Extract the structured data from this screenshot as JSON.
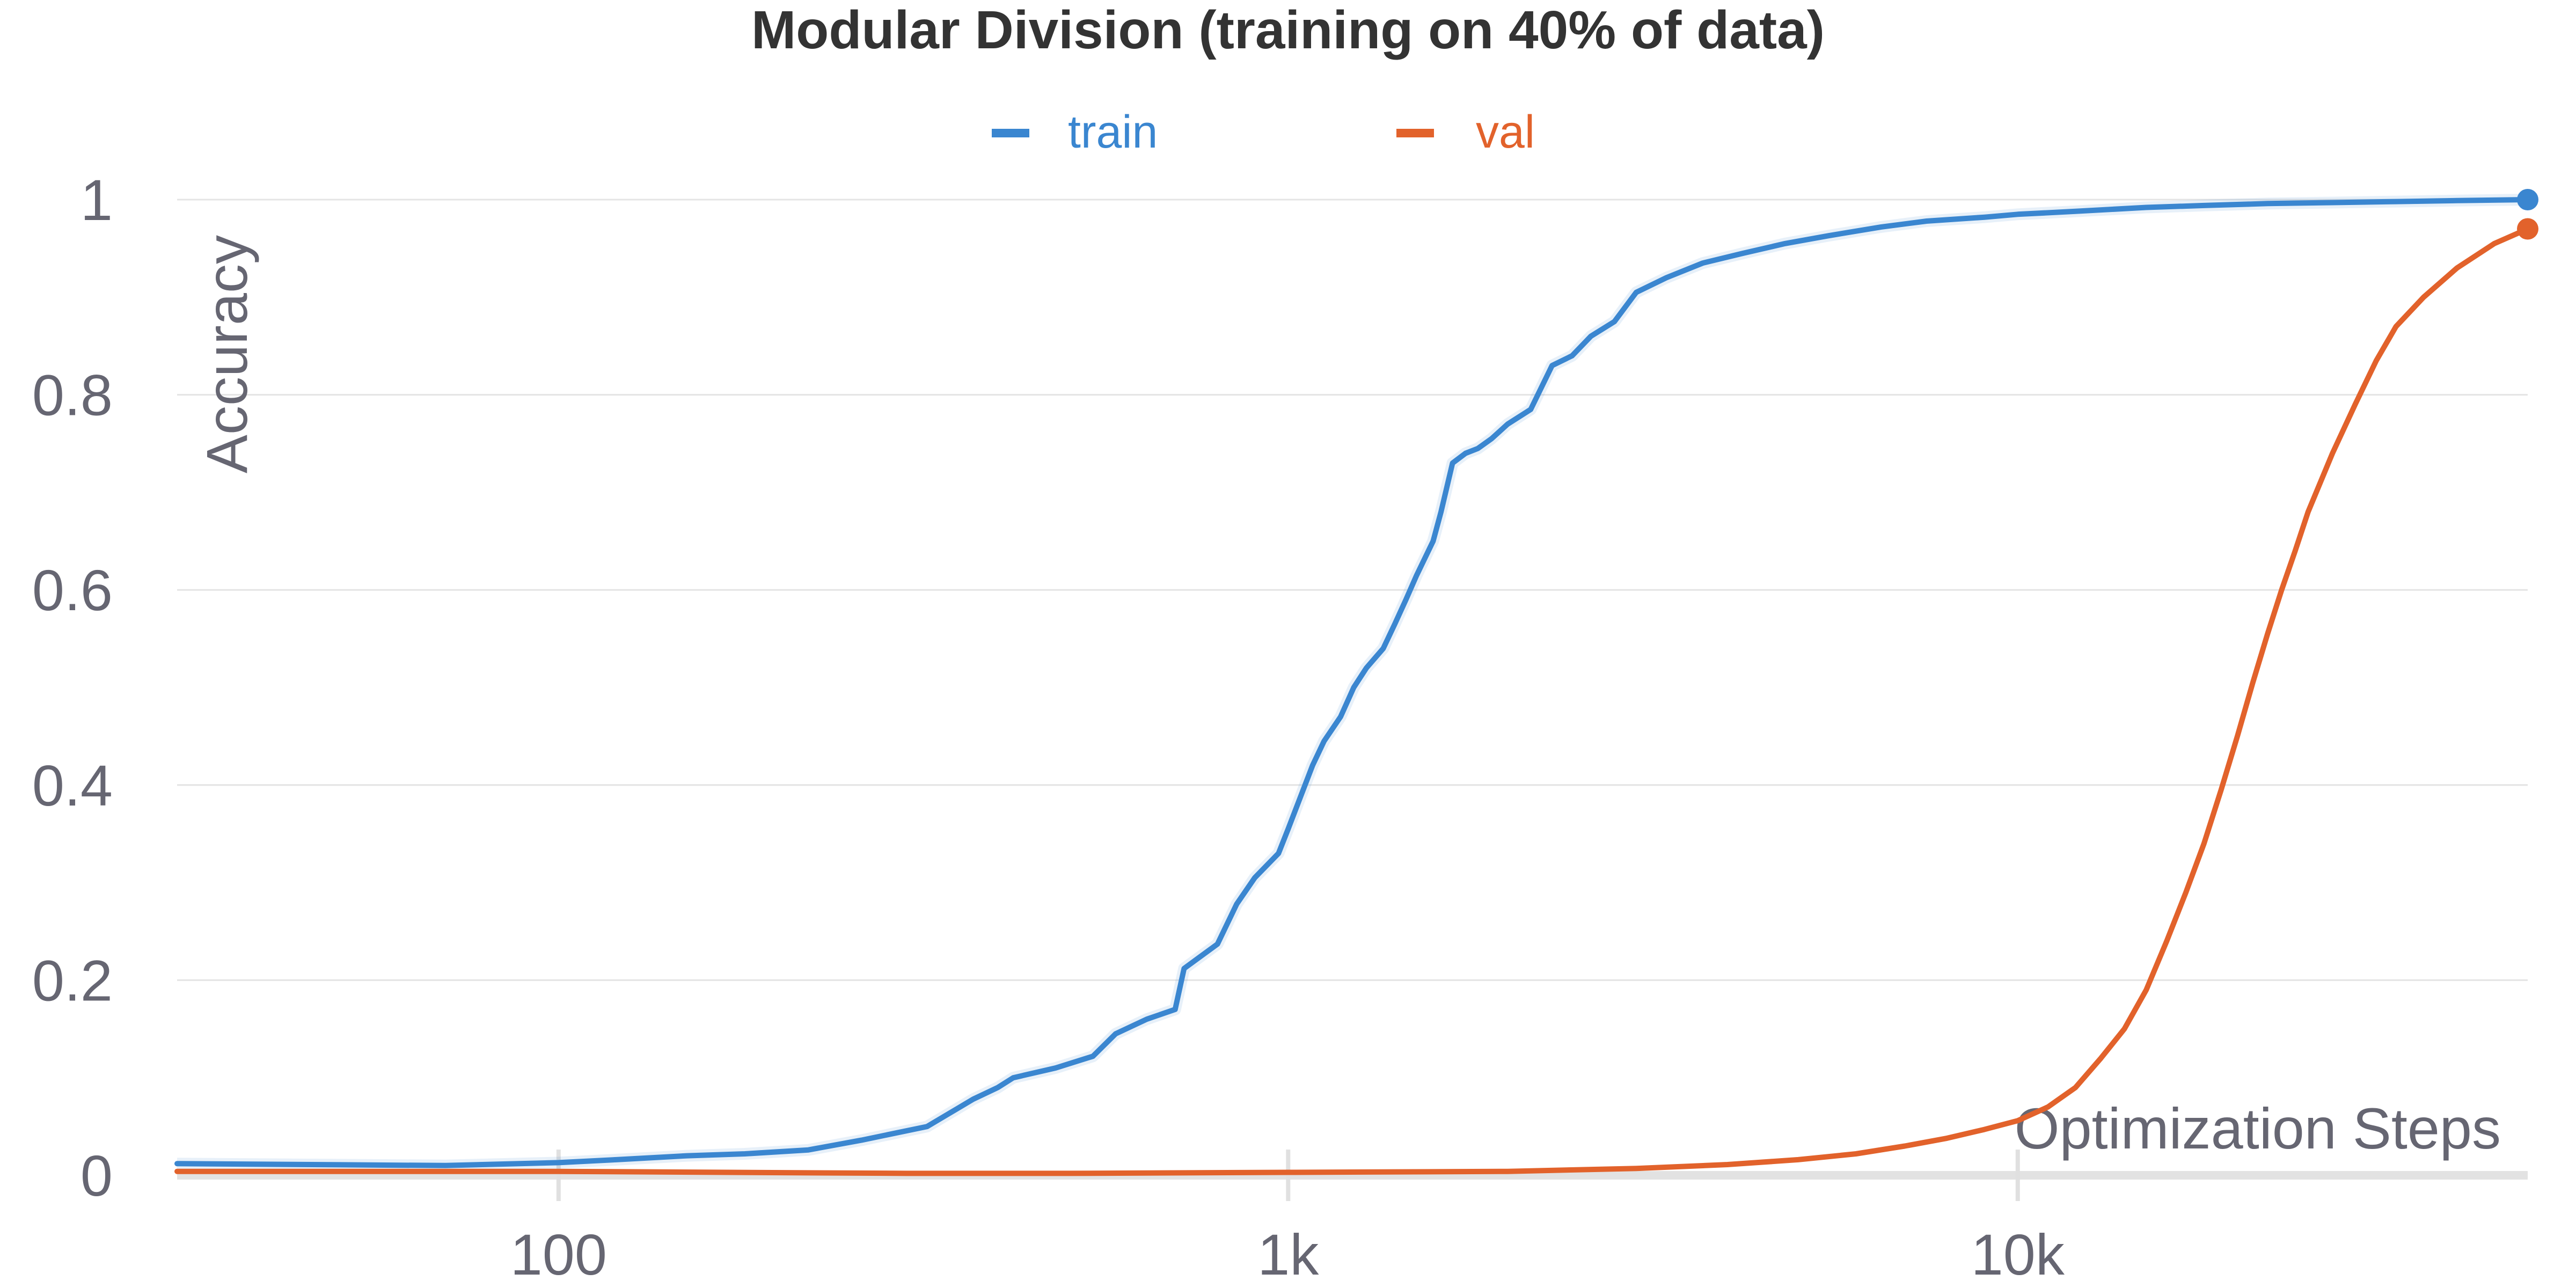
{
  "chart_data": {
    "type": "line",
    "title": "Modular Division (training on 40% of data)",
    "xlabel": "Optimization Steps",
    "ylabel": "Accuracy",
    "xscale": "log",
    "xlim": [
      30,
      50000
    ],
    "ylim": [
      0,
      1
    ],
    "grid": true,
    "legend_position": "top-center",
    "y_ticks": [
      {
        "value": 0,
        "label": "0"
      },
      {
        "value": 0.2,
        "label": "0.2"
      },
      {
        "value": 0.4,
        "label": "0.4"
      },
      {
        "value": 0.6,
        "label": "0.6"
      },
      {
        "value": 0.8,
        "label": "0.8"
      },
      {
        "value": 1,
        "label": "1"
      }
    ],
    "x_ticks": [
      {
        "value": 100,
        "label": "100"
      },
      {
        "value": 1000,
        "label": "1k"
      },
      {
        "value": 10000,
        "label": "10k"
      }
    ],
    "series": [
      {
        "name": "train",
        "color": "#3a86d0",
        "x": [
          30,
          70,
          100,
          120,
          150,
          180,
          220,
          260,
          320,
          370,
          400,
          420,
          480,
          540,
          580,
          640,
          700,
          720,
          800,
          850,
          900,
          970,
          1000,
          1080,
          1120,
          1180,
          1230,
          1280,
          1350,
          1400,
          1450,
          1500,
          1580,
          1620,
          1680,
          1750,
          1820,
          1900,
          2000,
          2150,
          2300,
          2450,
          2600,
          2800,
          3000,
          3300,
          3700,
          4200,
          4800,
          5500,
          6500,
          7500,
          9000,
          10000,
          12000,
          15000,
          18000,
          22000,
          27000,
          33000,
          40000,
          50000
        ],
        "y": [
          0.012,
          0.01,
          0.013,
          0.016,
          0.02,
          0.022,
          0.026,
          0.036,
          0.05,
          0.078,
          0.09,
          0.1,
          0.11,
          0.122,
          0.145,
          0.16,
          0.17,
          0.212,
          0.237,
          0.278,
          0.305,
          0.33,
          0.355,
          0.42,
          0.445,
          0.47,
          0.5,
          0.52,
          0.54,
          0.565,
          0.59,
          0.615,
          0.65,
          0.68,
          0.73,
          0.74,
          0.745,
          0.755,
          0.77,
          0.785,
          0.83,
          0.84,
          0.86,
          0.875,
          0.905,
          0.92,
          0.935,
          0.945,
          0.955,
          0.963,
          0.972,
          0.978,
          0.982,
          0.985,
          0.988,
          0.992,
          0.994,
          0.996,
          0.997,
          0.998,
          0.999,
          1.0
        ]
      },
      {
        "name": "val",
        "color": "#e2622b",
        "x": [
          30,
          100,
          300,
          500,
          1000,
          2000,
          3000,
          4000,
          5000,
          6000,
          7000,
          8000,
          9000,
          10000,
          11000,
          12000,
          13000,
          14000,
          15000,
          16000,
          17000,
          18000,
          19000,
          20000,
          21000,
          22000,
          23000,
          24000,
          25000,
          27000,
          29000,
          31000,
          33000,
          36000,
          40000,
          45000,
          50000
        ],
        "y": [
          0.004,
          0.004,
          0.002,
          0.002,
          0.003,
          0.004,
          0.007,
          0.011,
          0.016,
          0.022,
          0.03,
          0.038,
          0.047,
          0.056,
          0.07,
          0.09,
          0.12,
          0.15,
          0.19,
          0.24,
          0.29,
          0.34,
          0.395,
          0.45,
          0.505,
          0.555,
          0.6,
          0.64,
          0.68,
          0.74,
          0.79,
          0.835,
          0.87,
          0.9,
          0.93,
          0.955,
          0.97
        ]
      }
    ]
  }
}
